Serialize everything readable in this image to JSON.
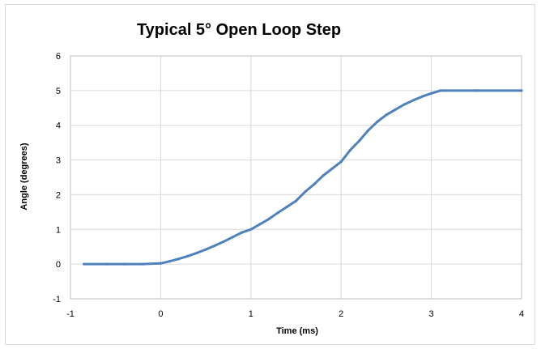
{
  "chart_data": {
    "type": "line",
    "title": "Typical  5° Open Loop Step",
    "xlabel": "Time (ms)",
    "ylabel": "Angle (degrees)",
    "xlim": [
      -1,
      4
    ],
    "ylim": [
      -1,
      6
    ],
    "x_ticks": [
      "-1",
      "0",
      "1",
      "2",
      "3",
      "4"
    ],
    "y_ticks": [
      "-1",
      "0",
      "1",
      "2",
      "3",
      "4",
      "5",
      "6"
    ],
    "grid": true,
    "legend": "none",
    "series": [
      {
        "color": "#4f81bd",
        "x": [
          -0.85,
          -0.6,
          -0.4,
          -0.2,
          0,
          0.1,
          0.2,
          0.3,
          0.4,
          0.5,
          0.6,
          0.7,
          0.8,
          0.9,
          1.0,
          1.1,
          1.2,
          1.3,
          1.4,
          1.5,
          1.6,
          1.7,
          1.8,
          1.9,
          2.0,
          2.1,
          2.2,
          2.3,
          2.4,
          2.5,
          2.6,
          2.7,
          2.8,
          2.9,
          3.0,
          3.1,
          3.5,
          4.0
        ],
        "y": [
          0,
          0,
          0,
          0,
          0.02,
          0.08,
          0.15,
          0.23,
          0.32,
          0.42,
          0.53,
          0.65,
          0.78,
          0.91,
          1.0,
          1.15,
          1.3,
          1.48,
          1.65,
          1.82,
          2.08,
          2.3,
          2.55,
          2.75,
          2.95,
          3.28,
          3.55,
          3.85,
          4.1,
          4.3,
          4.45,
          4.6,
          4.72,
          4.83,
          4.92,
          5.0,
          5.0,
          5.0
        ]
      }
    ]
  }
}
